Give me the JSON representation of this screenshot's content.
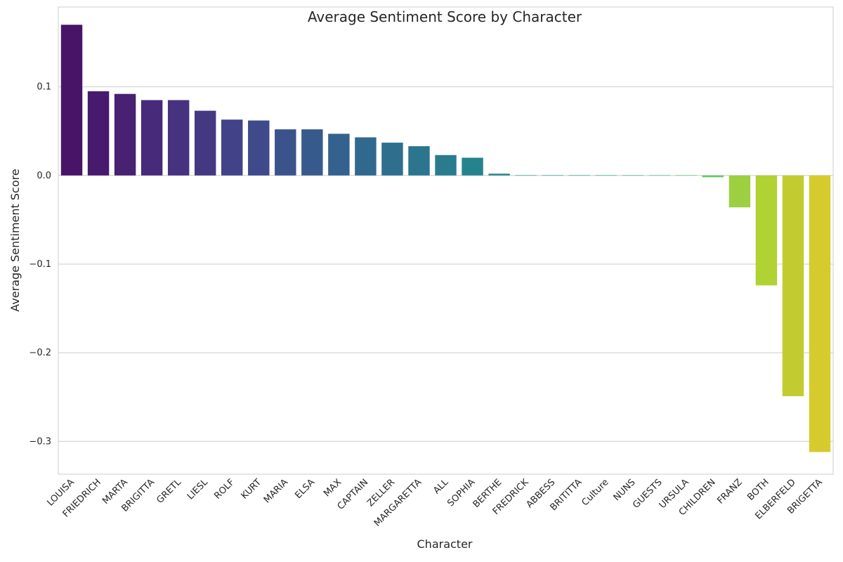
{
  "chart_data": {
    "type": "bar",
    "title": "Average Sentiment Score by Character",
    "xlabel": "Character",
    "ylabel": "Average Sentiment Score",
    "ylim": [
      -0.337,
      0.19
    ],
    "yticks": [
      0.1,
      0.0,
      -0.1,
      -0.2,
      -0.3
    ],
    "ytick_labels": [
      "0.1",
      "0.0",
      "−0.1",
      "−0.2",
      "−0.3"
    ],
    "grid": "horizontal",
    "palette": "viridis",
    "categories": [
      "LOUISA",
      "FRIEDRICH",
      "MARTA",
      "BRIGITTA",
      "GRETL",
      "LIESL",
      "ROLF",
      "KURT",
      "MARIA",
      "ELSA",
      "MAX",
      "CAPTAIN",
      "ZELLER",
      "MARGARETTA",
      "ALL",
      "SOPHIA",
      "BERTHE",
      "FREDRICK",
      "ABBESS",
      "BRITITTA",
      "Culture",
      "NUNS",
      "GUESTS",
      "URSULA",
      "CHILDREN",
      "FRANZ",
      "BOTH",
      "ELBERFELD",
      "BRIGETTA"
    ],
    "values": [
      0.17,
      0.095,
      0.092,
      0.085,
      0.085,
      0.073,
      0.063,
      0.062,
      0.052,
      0.052,
      0.047,
      0.043,
      0.037,
      0.033,
      0.023,
      0.02,
      0.002,
      0.0,
      0.0,
      0.0,
      0.0,
      0.0,
      0.0,
      0.0,
      -0.002,
      -0.036,
      -0.124,
      -0.249,
      -0.312
    ],
    "colors": [
      "#481467",
      "#471a6e",
      "#482173",
      "#472a7a",
      "#46327e",
      "#453882",
      "#414287",
      "#3e4a89",
      "#3a538b",
      "#375a8c",
      "#34618d",
      "#31688e",
      "#2e6f8e",
      "#2b758e",
      "#287c8e",
      "#25838e",
      "#228a8d",
      "#20908d",
      "#1f978b",
      "#1f9e89",
      "#22a884",
      "#2ab07f",
      "#3aba76",
      "#4ac16d",
      "#5ec962",
      "#9cd040",
      "#b0d232",
      "#c3cc2f",
      "#d6cb2d"
    ]
  }
}
